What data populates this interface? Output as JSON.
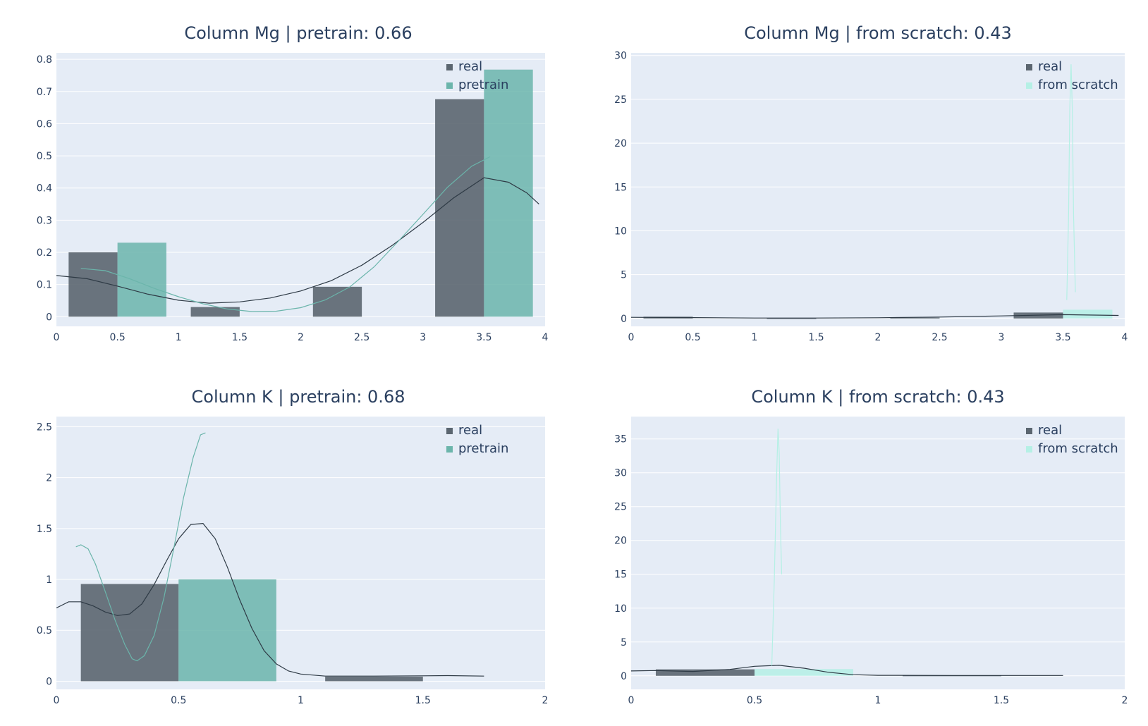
{
  "chart_data": [
    {
      "type": "bar",
      "title": "Column Mg | pretrain: 0.66",
      "xlim": [
        0,
        4
      ],
      "ylim": [
        -0.03,
        0.82
      ],
      "xticks": [
        {
          "v": 0,
          "label": "0"
        },
        {
          "v": 0.5,
          "label": "0.5"
        },
        {
          "v": 1,
          "label": "1"
        },
        {
          "v": 1.5,
          "label": "1.5"
        },
        {
          "v": 2,
          "label": "2"
        },
        {
          "v": 2.5,
          "label": "2.5"
        },
        {
          "v": 3,
          "label": "3"
        },
        {
          "v": 3.5,
          "label": "3.5"
        },
        {
          "v": 4,
          "label": "4"
        }
      ],
      "yticks": [
        {
          "v": 0,
          "label": "0"
        },
        {
          "v": 0.1,
          "label": "0.1"
        },
        {
          "v": 0.2,
          "label": "0.2"
        },
        {
          "v": 0.3,
          "label": "0.3"
        },
        {
          "v": 0.4,
          "label": "0.4"
        },
        {
          "v": 0.5,
          "label": "0.5"
        },
        {
          "v": 0.6,
          "label": "0.6"
        },
        {
          "v": 0.7,
          "label": "0.7"
        },
        {
          "v": 0.8,
          "label": "0.8"
        }
      ],
      "legend": [
        "real",
        "pretrain"
      ],
      "series": [
        {
          "name": "real",
          "color": "#5b6670",
          "bars": [
            {
              "x0": 0.1,
              "x1": 0.5,
              "y": 0.2
            },
            {
              "x0": 1.1,
              "x1": 1.5,
              "y": 0.03
            },
            {
              "x0": 2.1,
              "x1": 2.5,
              "y": 0.093
            },
            {
              "x0": 3.1,
              "x1": 3.5,
              "y": 0.676
            }
          ],
          "curve": [
            [
              0,
              0.128
            ],
            [
              0.25,
              0.118
            ],
            [
              0.5,
              0.095
            ],
            [
              0.75,
              0.07
            ],
            [
              1.0,
              0.051
            ],
            [
              1.25,
              0.042
            ],
            [
              1.5,
              0.046
            ],
            [
              1.75,
              0.058
            ],
            [
              2.0,
              0.08
            ],
            [
              2.25,
              0.112
            ],
            [
              2.5,
              0.16
            ],
            [
              2.75,
              0.222
            ],
            [
              3.0,
              0.293
            ],
            [
              3.25,
              0.369
            ],
            [
              3.5,
              0.432
            ],
            [
              3.7,
              0.418
            ],
            [
              3.85,
              0.385
            ],
            [
              3.95,
              0.35
            ]
          ]
        },
        {
          "name": "pretrain",
          "color": "#6bb5ab",
          "bars": [
            {
              "x0": 0.5,
              "x1": 0.9,
              "y": 0.23
            },
            {
              "x0": 3.5,
              "x1": 3.9,
              "y": 0.768
            }
          ],
          "curve": [
            [
              0.2,
              0.15
            ],
            [
              0.4,
              0.143
            ],
            [
              0.6,
              0.118
            ],
            [
              0.8,
              0.088
            ],
            [
              1.0,
              0.062
            ],
            [
              1.2,
              0.04
            ],
            [
              1.4,
              0.024
            ],
            [
              1.6,
              0.016
            ],
            [
              1.8,
              0.017
            ],
            [
              2.0,
              0.028
            ],
            [
              2.2,
              0.052
            ],
            [
              2.4,
              0.092
            ],
            [
              2.6,
              0.155
            ],
            [
              2.8,
              0.235
            ],
            [
              3.0,
              0.318
            ],
            [
              3.2,
              0.402
            ],
            [
              3.4,
              0.468
            ],
            [
              3.55,
              0.497
            ]
          ]
        }
      ]
    },
    {
      "type": "bar",
      "title": "Column Mg | from scratch: 0.43",
      "xlim": [
        0,
        4
      ],
      "ylim": [
        -0.9,
        30.3
      ],
      "xticks": [
        {
          "v": 0,
          "label": "0"
        },
        {
          "v": 0.5,
          "label": "0.5"
        },
        {
          "v": 1,
          "label": "1"
        },
        {
          "v": 1.5,
          "label": "1.5"
        },
        {
          "v": 2,
          "label": "2"
        },
        {
          "v": 2.5,
          "label": "2.5"
        },
        {
          "v": 3,
          "label": "3"
        },
        {
          "v": 3.5,
          "label": "3.5"
        },
        {
          "v": 4,
          "label": "4"
        }
      ],
      "yticks": [
        {
          "v": 0,
          "label": "0"
        },
        {
          "v": 5,
          "label": "5"
        },
        {
          "v": 10,
          "label": "10"
        },
        {
          "v": 15,
          "label": "15"
        },
        {
          "v": 20,
          "label": "20"
        },
        {
          "v": 25,
          "label": "25"
        },
        {
          "v": 30,
          "label": "30"
        }
      ],
      "legend": [
        "real",
        "from scratch"
      ],
      "series": [
        {
          "name": "real",
          "color": "#5b6670",
          "bars": [
            {
              "x0": 0.1,
              "x1": 0.5,
              "y": 0.2
            },
            {
              "x0": 1.1,
              "x1": 1.5,
              "y": 0.03
            },
            {
              "x0": 2.1,
              "x1": 2.5,
              "y": 0.093
            },
            {
              "x0": 3.1,
              "x1": 3.5,
              "y": 0.676
            }
          ],
          "curve": [
            [
              0,
              0.128
            ],
            [
              0.5,
              0.095
            ],
            [
              1.0,
              0.051
            ],
            [
              1.5,
              0.046
            ],
            [
              2.0,
              0.08
            ],
            [
              2.5,
              0.16
            ],
            [
              3.0,
              0.293
            ],
            [
              3.5,
              0.432
            ],
            [
              3.95,
              0.35
            ]
          ]
        },
        {
          "name": "from scratch",
          "color": "#b5f0e5",
          "bars": [
            {
              "x0": 3.5,
              "x1": 3.9,
              "y": 1.0
            }
          ],
          "curve": [
            [
              3.53,
              2.1
            ],
            [
              3.545,
              12
            ],
            [
              3.555,
              24
            ],
            [
              3.565,
              29
            ],
            [
              3.575,
              24
            ],
            [
              3.585,
              12
            ],
            [
              3.6,
              3.0
            ]
          ]
        }
      ]
    },
    {
      "type": "bar",
      "title": "Column K | pretrain: 0.68",
      "xlim": [
        0,
        2
      ],
      "ylim": [
        -0.08,
        2.6
      ],
      "xticks": [
        {
          "v": 0,
          "label": "0"
        },
        {
          "v": 0.5,
          "label": "0.5"
        },
        {
          "v": 1,
          "label": "1"
        },
        {
          "v": 1.5,
          "label": "1.5"
        },
        {
          "v": 2,
          "label": "2"
        }
      ],
      "yticks": [
        {
          "v": 0,
          "label": "0"
        },
        {
          "v": 0.5,
          "label": "0.5"
        },
        {
          "v": 1,
          "label": "1"
        },
        {
          "v": 1.5,
          "label": "1.5"
        },
        {
          "v": 2,
          "label": "2"
        },
        {
          "v": 2.5,
          "label": "2.5"
        }
      ],
      "legend": [
        "real",
        "pretrain"
      ],
      "series": [
        {
          "name": "real",
          "color": "#5b6670",
          "bars": [
            {
              "x0": 0.1,
              "x1": 0.5,
              "y": 0.955
            },
            {
              "x0": 1.1,
              "x1": 1.5,
              "y": 0.045
            }
          ],
          "curve": [
            [
              0,
              0.72
            ],
            [
              0.05,
              0.78
            ],
            [
              0.1,
              0.78
            ],
            [
              0.15,
              0.74
            ],
            [
              0.2,
              0.68
            ],
            [
              0.25,
              0.645
            ],
            [
              0.3,
              0.66
            ],
            [
              0.35,
              0.76
            ],
            [
              0.4,
              0.95
            ],
            [
              0.45,
              1.18
            ],
            [
              0.5,
              1.4
            ],
            [
              0.55,
              1.54
            ],
            [
              0.6,
              1.55
            ],
            [
              0.65,
              1.4
            ],
            [
              0.7,
              1.12
            ],
            [
              0.75,
              0.8
            ],
            [
              0.8,
              0.52
            ],
            [
              0.85,
              0.3
            ],
            [
              0.9,
              0.17
            ],
            [
              0.95,
              0.1
            ],
            [
              1.0,
              0.07
            ],
            [
              1.1,
              0.05
            ],
            [
              1.3,
              0.05
            ],
            [
              1.5,
              0.053
            ],
            [
              1.6,
              0.055
            ],
            [
              1.75,
              0.05
            ]
          ]
        },
        {
          "name": "pretrain",
          "color": "#6bb5ab",
          "bars": [
            {
              "x0": 0.5,
              "x1": 0.9,
              "y": 1.0
            }
          ],
          "curve": [
            [
              0.08,
              1.32
            ],
            [
              0.1,
              1.34
            ],
            [
              0.13,
              1.3
            ],
            [
              0.16,
              1.15
            ],
            [
              0.2,
              0.88
            ],
            [
              0.24,
              0.6
            ],
            [
              0.28,
              0.36
            ],
            [
              0.31,
              0.22
            ],
            [
              0.33,
              0.2
            ],
            [
              0.36,
              0.25
            ],
            [
              0.4,
              0.45
            ],
            [
              0.44,
              0.82
            ],
            [
              0.48,
              1.3
            ],
            [
              0.52,
              1.8
            ],
            [
              0.56,
              2.2
            ],
            [
              0.59,
              2.42
            ],
            [
              0.61,
              2.44
            ]
          ]
        }
      ]
    },
    {
      "type": "bar",
      "title": "Column K | from scratch: 0.43",
      "xlim": [
        0,
        2
      ],
      "ylim": [
        -2.0,
        38.3
      ],
      "xticks": [
        {
          "v": 0,
          "label": "0"
        },
        {
          "v": 0.5,
          "label": "0.5"
        },
        {
          "v": 1,
          "label": "1"
        },
        {
          "v": 1.5,
          "label": "1.5"
        },
        {
          "v": 2,
          "label": "2"
        }
      ],
      "yticks": [
        {
          "v": 0,
          "label": "0"
        },
        {
          "v": 5,
          "label": "5"
        },
        {
          "v": 10,
          "label": "10"
        },
        {
          "v": 15,
          "label": "15"
        },
        {
          "v": 20,
          "label": "20"
        },
        {
          "v": 25,
          "label": "25"
        },
        {
          "v": 30,
          "label": "30"
        },
        {
          "v": 35,
          "label": "35"
        }
      ],
      "legend": [
        "real",
        "from scratch"
      ],
      "series": [
        {
          "name": "real",
          "color": "#5b6670",
          "bars": [
            {
              "x0": 0.1,
              "x1": 0.5,
              "y": 0.955
            },
            {
              "x0": 1.1,
              "x1": 1.5,
              "y": 0.045
            }
          ],
          "curve": [
            [
              0,
              0.72
            ],
            [
              0.1,
              0.78
            ],
            [
              0.25,
              0.645
            ],
            [
              0.4,
              0.95
            ],
            [
              0.5,
              1.4
            ],
            [
              0.6,
              1.55
            ],
            [
              0.7,
              1.12
            ],
            [
              0.8,
              0.52
            ],
            [
              0.9,
              0.17
            ],
            [
              1.0,
              0.07
            ],
            [
              1.3,
              0.05
            ],
            [
              1.75,
              0.05
            ]
          ]
        },
        {
          "name": "from scratch",
          "color": "#b5f0e5",
          "bars": [
            {
              "x0": 0.5,
              "x1": 0.9,
              "y": 1.0
            }
          ],
          "curve": [
            [
              0.57,
              1.5
            ],
            [
              0.58,
              14
            ],
            [
              0.59,
              30
            ],
            [
              0.595,
              36.5
            ],
            [
              0.6,
              33
            ],
            [
              0.605,
              22
            ],
            [
              0.61,
              15
            ]
          ]
        }
      ]
    }
  ]
}
